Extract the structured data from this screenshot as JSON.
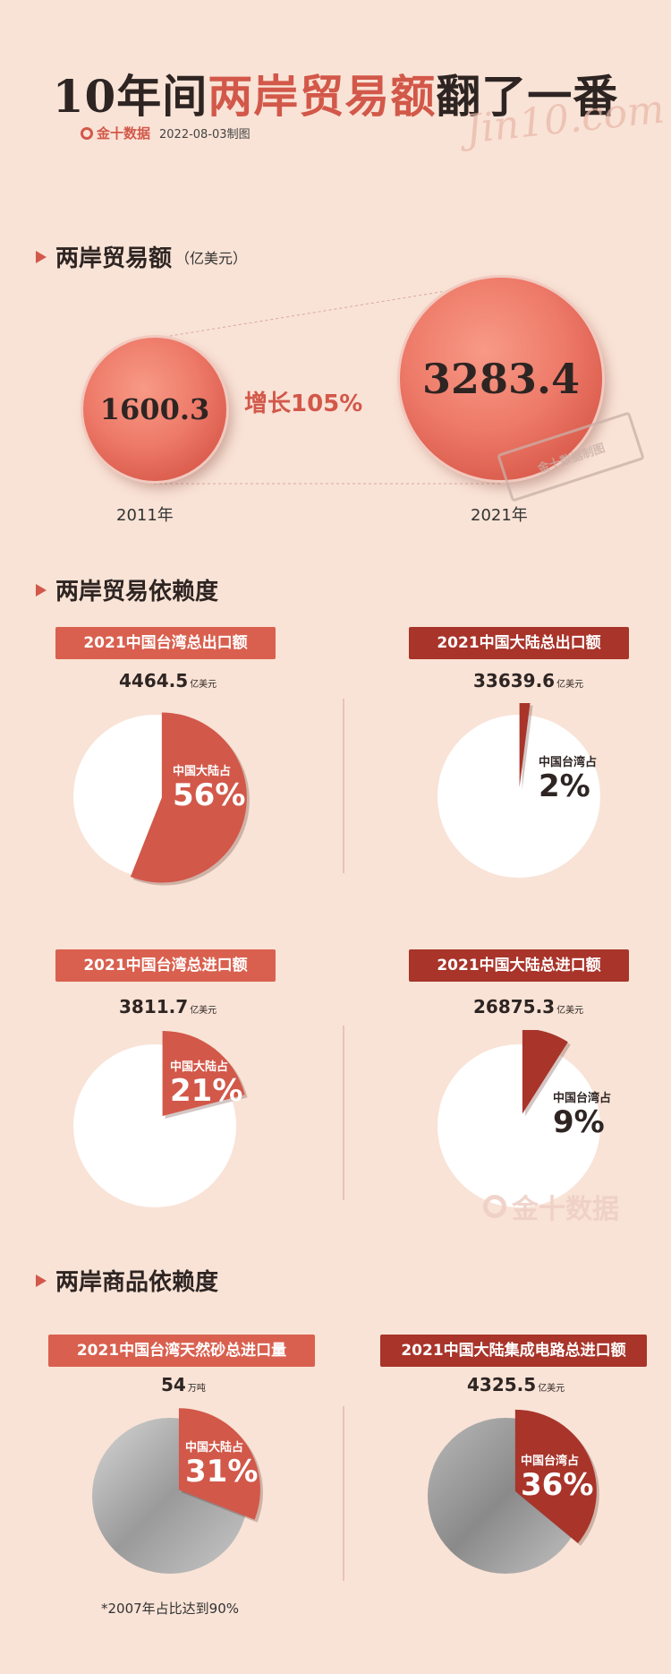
{
  "header": {
    "title_pre": "10年间",
    "title_highlight": "两岸贸易额",
    "title_post": "翻了一番",
    "brand": "金十数据",
    "date_label": "2022-08-03制图",
    "watermark_script": "Jin10.com",
    "stamp_text": "金十数据制图"
  },
  "colors": {
    "accent": "#d2584a",
    "dark": "#a8342a",
    "background": "#f9e3d6",
    "pie_bg": "#ffffff"
  },
  "chart_data": [
    {
      "type": "bubble",
      "title": "两岸贸易额",
      "unit": "（亿美元）",
      "categories": [
        "2011年",
        "2021年"
      ],
      "values": [
        1600.3,
        3283.4
      ],
      "value_labels": [
        "1600.3",
        "3283.4"
      ],
      "annotation": "增长105%"
    },
    {
      "type": "pie",
      "section": "两岸贸易依赖度",
      "title": "2021中国台湾总出口额",
      "total": "4464.5",
      "unit": "亿美元",
      "share_label": "中国大陆占",
      "share": 56,
      "share_text": "56%"
    },
    {
      "type": "pie",
      "section": "两岸贸易依赖度",
      "title": "2021中国大陆总出口额",
      "total": "33639.6",
      "unit": "亿美元",
      "share_label": "中国台湾占",
      "share": 2,
      "share_text": "2%"
    },
    {
      "type": "pie",
      "section": "两岸贸易依赖度",
      "title": "2021中国台湾总进口额",
      "total": "3811.7",
      "unit": "亿美元",
      "share_label": "中国大陆占",
      "share": 21,
      "share_text": "21%"
    },
    {
      "type": "pie",
      "section": "两岸贸易依赖度",
      "title": "2021中国大陆总进口额",
      "total": "26875.3",
      "unit": "亿美元",
      "share_label": "中国台湾占",
      "share": 9,
      "share_text": "9%"
    },
    {
      "type": "pie",
      "section": "两岸商品依赖度",
      "title": "2021中国台湾天然砂总进口量",
      "total": "54",
      "unit": "万吨",
      "share_label": "中国大陆占",
      "share": 31,
      "share_text": "31%",
      "note": "*2007年占比达到90%"
    },
    {
      "type": "pie",
      "section": "两岸商品依赖度",
      "title": "2021中国大陆集成电路总进口额",
      "total": "4325.5",
      "unit": "亿美元",
      "share_label": "中国台湾占",
      "share": 36,
      "share_text": "36%"
    }
  ],
  "sections": {
    "trade": "两岸贸易额",
    "dependence": "两岸贸易依赖度",
    "goods": "两岸商品依赖度"
  },
  "footer_watermark": "金十数据"
}
